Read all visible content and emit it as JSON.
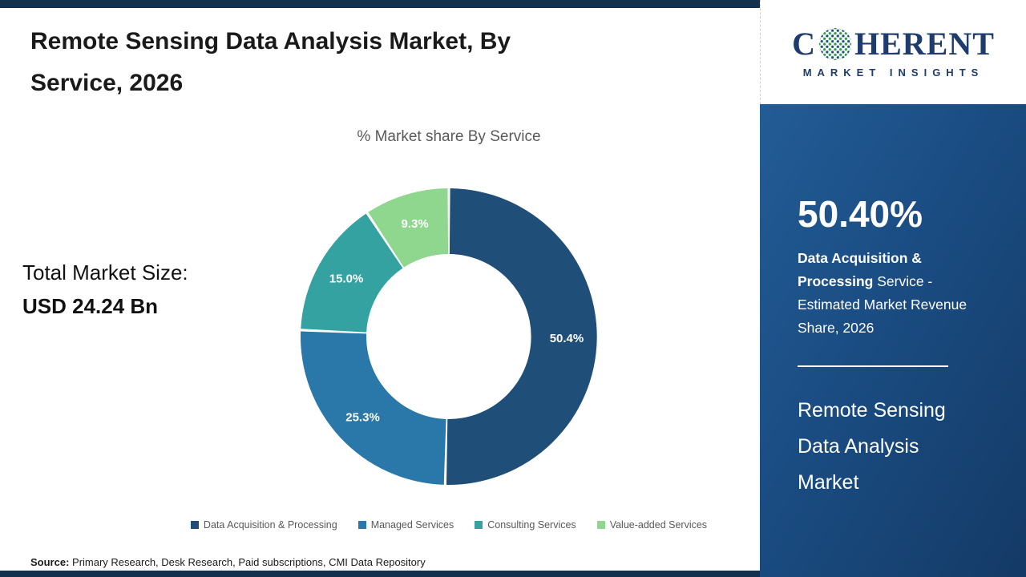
{
  "header": {
    "title": "Remote Sensing Data Analysis Market, By Service, 2026"
  },
  "market_size": {
    "label": "Total Market Size:",
    "value": "USD 24.24 Bn"
  },
  "chart_data": {
    "type": "pie",
    "donut": true,
    "title": "% Market share By Service",
    "start_angle_deg": -90,
    "direction": "clockwise",
    "legend_position": "bottom",
    "series": [
      {
        "name": "Data Acquisition & Processing",
        "value": 50.4,
        "label": "50.4%",
        "color": "#1f4e79"
      },
      {
        "name": "Managed Services",
        "value": 25.3,
        "label": "25.3%",
        "color": "#2a77a9"
      },
      {
        "name": "Consulting Services",
        "value": 15.0,
        "label": "15.0%",
        "color": "#35a2a2"
      },
      {
        "name": "Value-added Services",
        "value": 9.3,
        "label": "9.3%",
        "color": "#8fd68e"
      }
    ]
  },
  "source": {
    "prefix": "Source:",
    "text": " Primary Research, Desk Research, Paid subscriptions, CMI Data Repository"
  },
  "logo": {
    "part1": "C",
    "part2": "HERENT",
    "subtitle": "MARKET INSIGHTS"
  },
  "panel": {
    "stat": "50.40%",
    "desc_bold": "Data Acquisition & Processing",
    "desc_rest": " Service - Estimated Market Revenue Share, 2026",
    "market_name": "Remote Sensing Data Analysis Market"
  },
  "colors": {
    "accent_bar": "#14304f",
    "panel_blue": "#1a4c82",
    "logo_navy": "#1e3c6d",
    "text_gray": "#595959",
    "text_dark": "#1a1a1a"
  }
}
